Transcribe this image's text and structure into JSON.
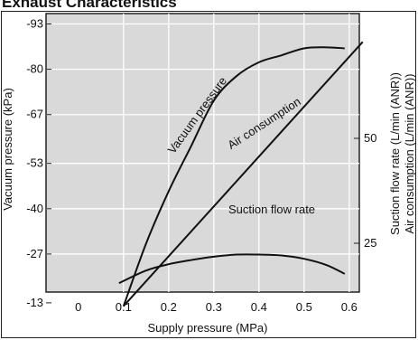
{
  "title": "Exhaust Characteristics",
  "chart_data": {
    "type": "line",
    "xlabel": "Supply pressure (MPa)",
    "ylabel_left": "Vacuum pressure (kPa)",
    "ylabel_right_1": "Suction flow rate (L/min (ANR))",
    "ylabel_right_2": "Air consumption (L/min (ANR))",
    "x_ticks": [
      0,
      0.1,
      0.2,
      0.3,
      0.4,
      0.5,
      0.6
    ],
    "xlim": [
      0,
      0.64
    ],
    "y_left_ticks": [
      -93,
      -80,
      -67,
      -53,
      -40,
      -27,
      -13
    ],
    "y_left_lim": [
      0,
      -100
    ],
    "y_right_ticks": [
      25,
      50
    ],
    "y_right_lim": [
      0,
      77
    ],
    "grid": true,
    "series": [
      {
        "name": "Vacuum pressure",
        "axis": "left",
        "x": [
          0.1,
          0.15,
          0.2,
          0.25,
          0.3,
          0.35,
          0.4,
          0.45,
          0.5,
          0.55,
          0.59
        ],
        "y": [
          -12,
          -30,
          -45,
          -58,
          -71,
          -78,
          -82,
          -84,
          -86,
          -86.3,
          -86
        ]
      },
      {
        "name": "Air consumption",
        "axis": "right",
        "x": [
          0.1,
          0.63
        ],
        "y": [
          10,
          73
        ]
      },
      {
        "name": "Suction flow rate",
        "axis": "right",
        "x": [
          0.09,
          0.15,
          0.2,
          0.25,
          0.3,
          0.35,
          0.4,
          0.45,
          0.5,
          0.55,
          0.59
        ],
        "y": [
          15.5,
          18.5,
          20,
          21,
          21.8,
          22.3,
          22.3,
          22.1,
          21.3,
          19.8,
          17.7
        ]
      }
    ]
  }
}
